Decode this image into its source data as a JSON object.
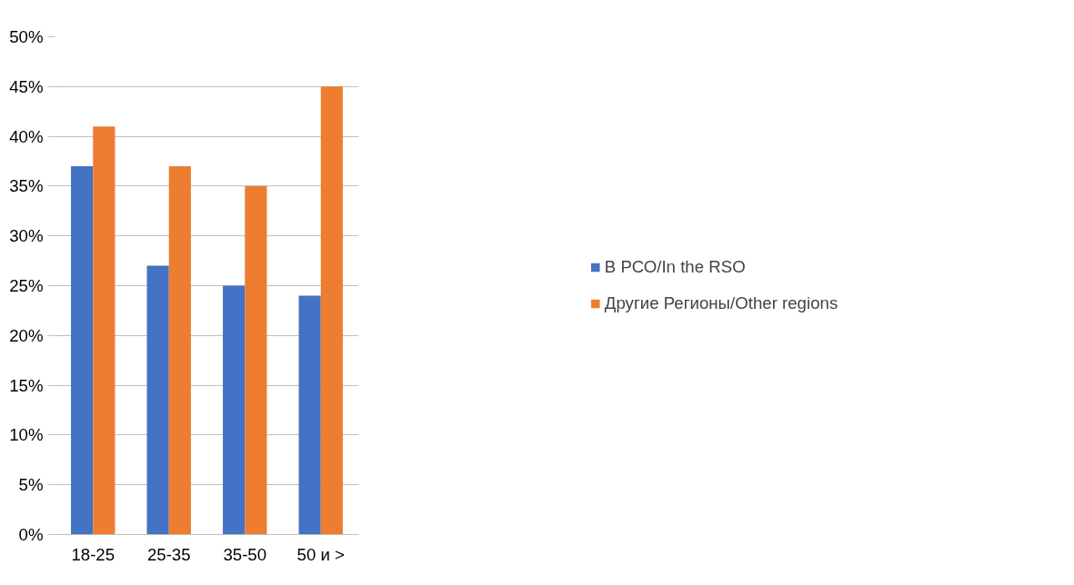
{
  "chart_data": {
    "type": "bar",
    "categories": [
      "18-25",
      "25-35",
      "35-50",
      "50 и >"
    ],
    "series": [
      {
        "name": "В РСО/In the RSO",
        "color": "#4472c4",
        "values": [
          37,
          27,
          25,
          24
        ]
      },
      {
        "name": "Другие Регионы/Other regions",
        "color": "#ed7d31",
        "values": [
          41,
          37,
          35,
          45
        ]
      }
    ],
    "ylim": [
      0,
      50
    ],
    "yticks": [
      {
        "value": 0,
        "label": "0%"
      },
      {
        "value": 5,
        "label": "5%"
      },
      {
        "value": 10,
        "label": "10%"
      },
      {
        "value": 15,
        "label": "15%"
      },
      {
        "value": 20,
        "label": "20%"
      },
      {
        "value": 25,
        "label": "25%"
      },
      {
        "value": 30,
        "label": "30%"
      },
      {
        "value": 35,
        "label": "35%"
      },
      {
        "value": 40,
        "label": "40%"
      },
      {
        "value": 45,
        "label": "45%"
      },
      {
        "value": 50,
        "label": "50%"
      }
    ],
    "grid": "y",
    "legend": "right"
  }
}
